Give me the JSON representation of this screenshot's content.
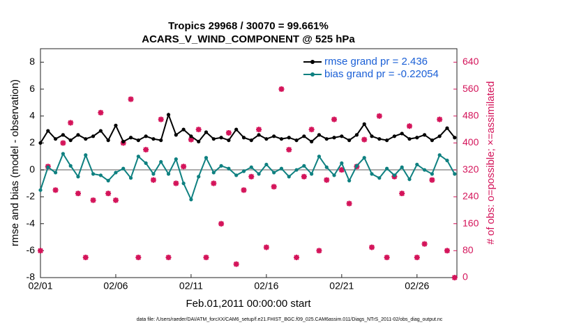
{
  "chart_data": {
    "type": "line",
    "title": "Tropics 29968 / 30070 = 99.661%",
    "subtitle": "ACARS_V_WIND_COMPONENT @ 525 hPa",
    "xlabel": "Feb.01,2011 00:00:00 start",
    "ylabel": "rmse and bias (model - observation)",
    "y2label": "# of obs: o=possible; ×=assimilated",
    "footer": "data file: /Users/raeder/DAI/ATM_forcXX/CAM6_setup/f.e21.FHIST_BGC.f09_025.CAM6assim.011/Diags_NTrS_2011-02/obs_diag_output.nc",
    "x": [
      1,
      1.5,
      2,
      2.5,
      3,
      3.5,
      4,
      4.5,
      5,
      5.5,
      6,
      6.5,
      7,
      7.5,
      8,
      8.5,
      9,
      9.5,
      10,
      10.5,
      11,
      11.5,
      12,
      12.5,
      13,
      13.5,
      14,
      14.5,
      15,
      15.5,
      16,
      16.5,
      17,
      17.5,
      18,
      18.5,
      19,
      19.5,
      20,
      20.5,
      21,
      21.5,
      22,
      22.5,
      23,
      23.5,
      24,
      24.5,
      25,
      25.5,
      26,
      26.5,
      27,
      27.5,
      28,
      28.5
    ],
    "xlim": [
      1,
      28.65
    ],
    "xticks": [
      {
        "value": 1,
        "label": "02/01"
      },
      {
        "value": 6,
        "label": "02/06"
      },
      {
        "value": 11,
        "label": "02/11"
      },
      {
        "value": 16,
        "label": "02/16"
      },
      {
        "value": 21,
        "label": "02/21"
      },
      {
        "value": 26,
        "label": "02/26"
      }
    ],
    "ylim": [
      -8,
      9
    ],
    "yticks": [
      -8,
      -6,
      -4,
      -2,
      0,
      2,
      4,
      6,
      8
    ],
    "y2lim": [
      0,
      680
    ],
    "y2ticks": [
      0,
      80,
      160,
      240,
      320,
      400,
      480,
      560,
      640
    ],
    "legend": "upper right",
    "series": [
      {
        "name": "rmse grand pr = 2.436",
        "color": "#000000",
        "values": [
          2.0,
          2.9,
          2.3,
          2.6,
          2.2,
          2.6,
          2.3,
          2.5,
          2.9,
          2.2,
          3.3,
          2.1,
          2.4,
          2.2,
          2.5,
          2.3,
          2.2,
          4.1,
          2.6,
          3.0,
          2.5,
          2.1,
          2.8,
          2.3,
          2.4,
          2.2,
          3.0,
          2.4,
          2.2,
          2.6,
          2.3,
          2.5,
          2.3,
          2.4,
          2.2,
          2.5,
          2.1,
          2.6,
          2.3,
          2.4,
          2.5,
          2.2,
          2.6,
          3.4,
          2.5,
          2.3,
          2.2,
          2.5,
          2.7,
          2.3,
          2.4,
          2.6,
          2.2,
          2.5,
          3.1,
          2.4
        ]
      },
      {
        "name": "bias grand pr = -0.22054",
        "color": "#0e8080",
        "values": [
          -1.5,
          0.2,
          -0.2,
          1.2,
          0.3,
          -0.5,
          1.1,
          -0.3,
          -0.4,
          -0.8,
          -0.2,
          0.1,
          -0.6,
          1.0,
          0.5,
          -0.3,
          0.6,
          -0.3,
          0.8,
          -1.0,
          -2.2,
          -0.5,
          0.9,
          -0.2,
          0.3,
          0.1,
          -0.4,
          -0.1,
          0.2,
          -0.3,
          0.4,
          -0.2,
          0.1,
          -0.5,
          0.0,
          0.3,
          -0.3,
          1.0,
          0.2,
          -0.4,
          0.5,
          -0.8,
          0.3,
          0.9,
          -0.3,
          -0.6,
          0.1,
          -0.4,
          0.2,
          -0.7,
          0.4,
          0.0,
          -0.3,
          1.1,
          0.7,
          -0.3
        ]
      },
      {
        "color": "#d4145a",
        "axis": "y2",
        "values": [
          80,
          330,
          260,
          400,
          460,
          250,
          60,
          230,
          490,
          250,
          230,
          400,
          530,
          60,
          380,
          290,
          470,
          60,
          280,
          330,
          410,
          440,
          60,
          280,
          160,
          430,
          40,
          260,
          300,
          440,
          90,
          270,
          560,
          380,
          60,
          300,
          440,
          80,
          290,
          470,
          320,
          220,
          330,
          410,
          90,
          480,
          60,
          300,
          250,
          450,
          60,
          100,
          290,
          470,
          80,
          0
        ]
      }
    ]
  }
}
